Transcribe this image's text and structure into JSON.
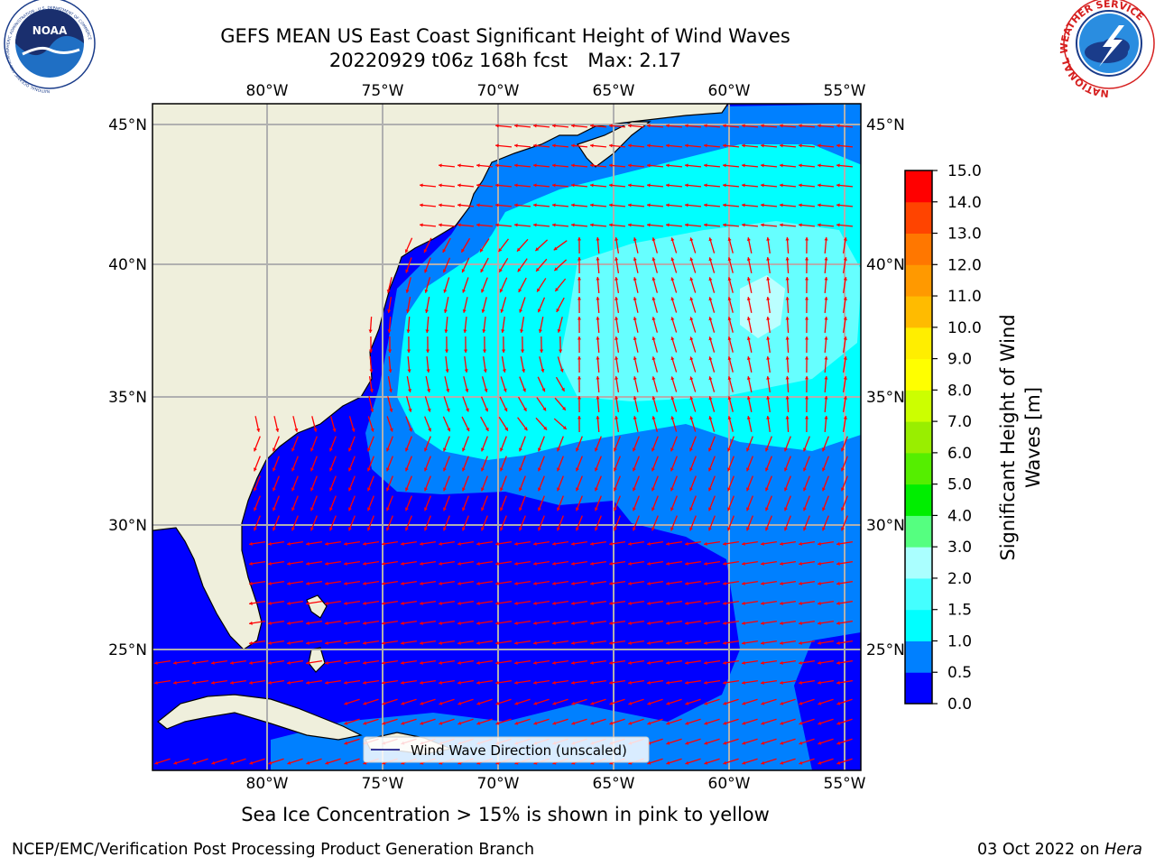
{
  "title": {
    "line1": "GEFS MEAN US East Coast Significant Height of Wind Waves",
    "line2": "20220929 t06z 168h fcst",
    "max_label": "Max: 2.17"
  },
  "axes": {
    "lon_ticks": [
      "80°W",
      "75°W",
      "70°W",
      "65°W",
      "60°W",
      "55°W"
    ],
    "lat_ticks": [
      "45°N",
      "40°N",
      "35°N",
      "30°N",
      "25°N"
    ]
  },
  "legend": {
    "label": "Wind Wave Direction (unscaled)"
  },
  "colorbar": {
    "label_line1": "Significant Height of Wind",
    "label_line2": "Waves [m]",
    "ticks": [
      "0.0",
      "0.5",
      "1.0",
      "1.5",
      "2.0",
      "3.0",
      "4.0",
      "5.0",
      "6.0",
      "7.0",
      "8.0",
      "9.0",
      "10.0",
      "11.0",
      "12.0",
      "13.0",
      "14.0",
      "15.0"
    ],
    "colors": [
      "#0000ff",
      "#0080ff",
      "#00ffff",
      "#44ffff",
      "#aaffff",
      "#55ff80",
      "#00ee00",
      "#55ee00",
      "#99ee00",
      "#ccff00",
      "#ffff00",
      "#ffee00",
      "#ffbb00",
      "#ff9900",
      "#ff7700",
      "#ff4400",
      "#ff0000"
    ]
  },
  "note": "Sea Ice Concentration > 15% is shown in pink to yellow",
  "footer": {
    "left": "NCEP/EMC/Verification Post Processing Product Generation Branch",
    "date": "03 Oct 2022 on",
    "machine": "Hera"
  },
  "logos": {
    "noaa": "NOAA",
    "noaa_ring": "NATIONAL OCEANIC AND ATMOSPHERIC ADMINISTRATION · U.S. DEPARTMENT OF COMMERCE",
    "nws_ring": "NATIONAL WEATHER SERVICE"
  }
}
